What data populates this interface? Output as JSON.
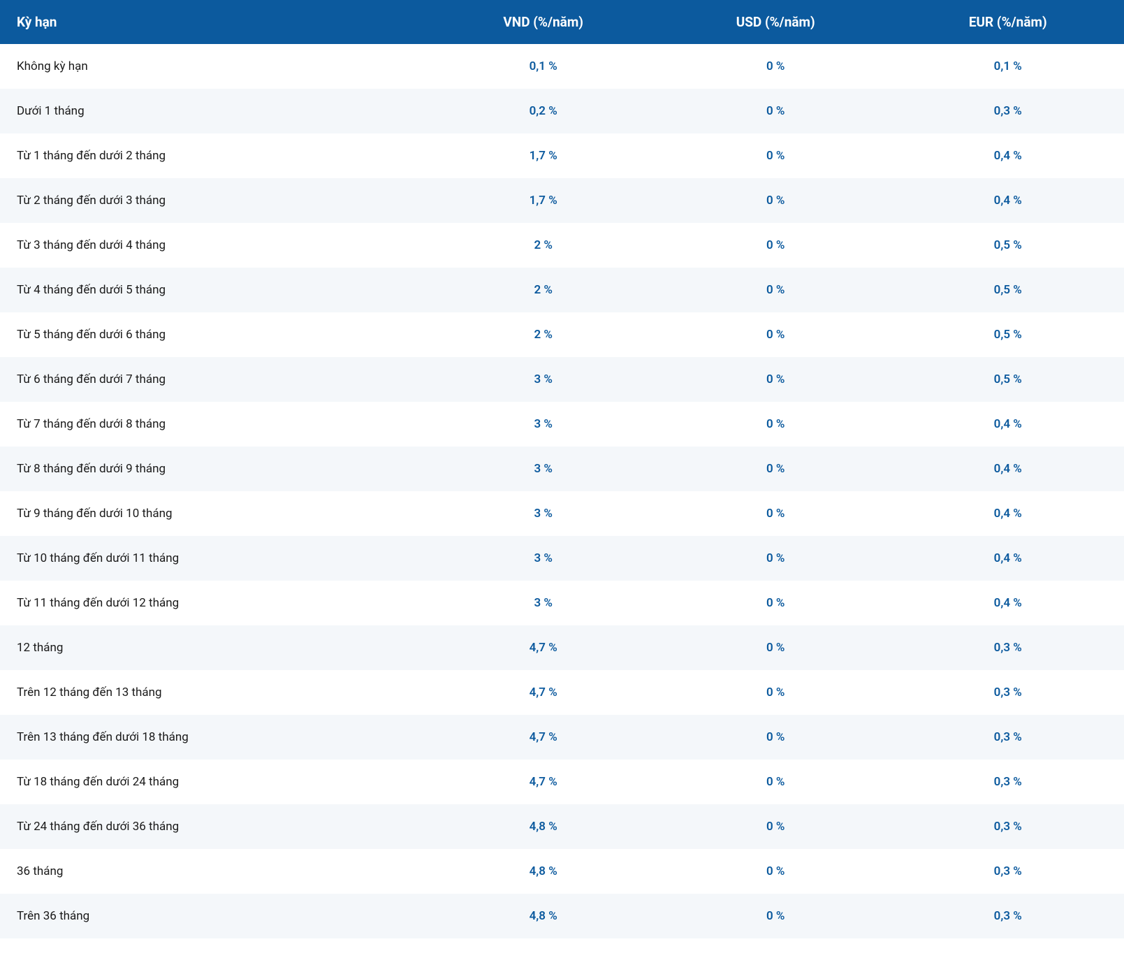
{
  "table": {
    "header_bg": "#0c5a9e",
    "header_fg": "#ffffff",
    "row_odd_bg": "#ffffff",
    "row_even_bg": "#f4f7fa",
    "value_color": "#0c5a9e",
    "term_color": "#1a1a1a",
    "header_fontsize": 19,
    "body_fontsize": 17,
    "columns": [
      {
        "key": "term",
        "label": "Kỳ hạn",
        "align": "left"
      },
      {
        "key": "vnd",
        "label": "VND (%/năm)",
        "align": "center"
      },
      {
        "key": "usd",
        "label": "USD (%/năm)",
        "align": "center"
      },
      {
        "key": "eur",
        "label": "EUR (%/năm)",
        "align": "center"
      }
    ],
    "rows": [
      {
        "term": "Không kỳ hạn",
        "vnd": "0,1 %",
        "usd": "0 %",
        "eur": "0,1 %"
      },
      {
        "term": "Dưới 1 tháng",
        "vnd": "0,2 %",
        "usd": "0 %",
        "eur": "0,3 %"
      },
      {
        "term": "Từ 1 tháng đến dưới 2 tháng",
        "vnd": "1,7 %",
        "usd": "0 %",
        "eur": "0,4 %"
      },
      {
        "term": "Từ 2 tháng đến dưới 3 tháng",
        "vnd": "1,7 %",
        "usd": "0 %",
        "eur": "0,4 %"
      },
      {
        "term": "Từ 3 tháng đến dưới 4 tháng",
        "vnd": "2 %",
        "usd": "0 %",
        "eur": "0,5 %"
      },
      {
        "term": "Từ 4 tháng đến dưới 5 tháng",
        "vnd": "2 %",
        "usd": "0 %",
        "eur": "0,5 %"
      },
      {
        "term": "Từ 5 tháng đến dưới 6 tháng",
        "vnd": "2 %",
        "usd": "0 %",
        "eur": "0,5 %"
      },
      {
        "term": "Từ 6 tháng đến dưới 7 tháng",
        "vnd": "3 %",
        "usd": "0 %",
        "eur": "0,5 %"
      },
      {
        "term": "Từ 7 tháng đến dưới 8 tháng",
        "vnd": "3 %",
        "usd": "0 %",
        "eur": "0,4 %"
      },
      {
        "term": "Từ 8 tháng đến dưới 9 tháng",
        "vnd": "3 %",
        "usd": "0 %",
        "eur": "0,4 %"
      },
      {
        "term": "Từ 9 tháng đến dưới 10 tháng",
        "vnd": "3 %",
        "usd": "0 %",
        "eur": "0,4 %"
      },
      {
        "term": "Từ 10 tháng đến dưới 11 tháng",
        "vnd": "3 %",
        "usd": "0 %",
        "eur": "0,4 %"
      },
      {
        "term": "Từ 11 tháng đến dưới 12 tháng",
        "vnd": "3 %",
        "usd": "0 %",
        "eur": "0,4 %"
      },
      {
        "term": "12 tháng",
        "vnd": "4,7 %",
        "usd": "0 %",
        "eur": "0,3 %"
      },
      {
        "term": "Trên 12 tháng đến 13 tháng",
        "vnd": "4,7 %",
        "usd": "0 %",
        "eur": "0,3 %"
      },
      {
        "term": "Trên 13 tháng đến dưới 18 tháng",
        "vnd": "4,7 %",
        "usd": "0 %",
        "eur": "0,3 %"
      },
      {
        "term": "Từ 18 tháng đến dưới 24 tháng",
        "vnd": "4,7 %",
        "usd": "0 %",
        "eur": "0,3 %"
      },
      {
        "term": "Từ 24 tháng đến dưới 36 tháng",
        "vnd": "4,8 %",
        "usd": "0 %",
        "eur": "0,3 %"
      },
      {
        "term": "36 tháng",
        "vnd": "4,8 %",
        "usd": "0 %",
        "eur": "0,3 %"
      },
      {
        "term": "Trên 36 tháng",
        "vnd": "4,8 %",
        "usd": "0 %",
        "eur": "0,3 %"
      }
    ]
  }
}
